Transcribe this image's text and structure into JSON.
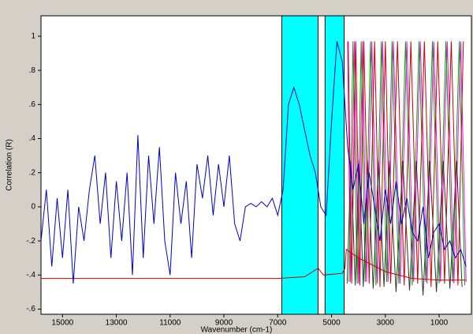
{
  "chart_data": {
    "type": "line",
    "xlabel": "Wavenumber (cm-1)",
    "ylabel": "Correlation (R)",
    "xlim": [
      15800,
      -200
    ],
    "ylim": [
      -0.63,
      1.12
    ],
    "xticks": [
      15000,
      13000,
      11000,
      9000,
      7000,
      5000,
      3000,
      1000
    ],
    "yticks": [
      {
        "value": 1,
        "label": "1"
      },
      {
        "value": 0.8,
        "label": ".8"
      },
      {
        "value": 0.6,
        "label": ".6"
      },
      {
        "value": 0.4,
        "label": ".4"
      },
      {
        "value": 0.2,
        "label": ".2"
      },
      {
        "value": 0,
        "label": "0"
      },
      {
        "value": -0.2,
        "label": "-.2"
      },
      {
        "value": -0.4,
        "label": "-.4"
      },
      {
        "value": -0.6,
        "label": "-.6"
      }
    ],
    "grid": false,
    "highlight_regions": [
      [
        6850,
        5500
      ],
      [
        5240,
        4530
      ]
    ],
    "highlight_color": "#00ffff",
    "series": [
      {
        "color": "#ff00ff",
        "x": [
          4400,
          4300,
          4150,
          4000,
          3850,
          3700,
          3500,
          3300,
          3100,
          2900,
          2700,
          2450,
          2200,
          1950,
          1700,
          1450,
          1200,
          950,
          700,
          450,
          200,
          0
        ],
        "values": [
          0.97,
          -0.44,
          0.97,
          -0.45,
          0.97,
          -0.44,
          0.97,
          -0.45,
          0.97,
          -0.44,
          0.97,
          -0.45,
          0.97,
          -0.44,
          0.97,
          -0.45,
          0.97,
          -0.44,
          0.97,
          -0.45,
          0.97,
          -0.44
        ]
      },
      {
        "color": "#00aa00",
        "x": [
          4350,
          4200,
          4050,
          3900,
          3750,
          3550,
          3350,
          3150,
          2950,
          2750,
          2500,
          2250,
          2000,
          1750,
          1500,
          1250,
          1000,
          750,
          500,
          250,
          50
        ],
        "values": [
          -0.44,
          0.97,
          -0.45,
          0.97,
          -0.44,
          0.97,
          -0.46,
          0.97,
          -0.44,
          0.97,
          -0.45,
          0.97,
          -0.46,
          0.97,
          -0.44,
          0.97,
          -0.45,
          0.97,
          -0.44,
          0.97,
          -0.46
        ]
      },
      {
        "color": "#cc0000",
        "x": [
          4380,
          4250,
          4100,
          3950,
          3800,
          3600,
          3400,
          3200,
          3000,
          2800,
          2550,
          2300,
          2050,
          1800,
          1550,
          1300,
          1050,
          800,
          550,
          300,
          100
        ],
        "values": [
          0.97,
          -0.45,
          0.97,
          -0.46,
          0.97,
          -0.45,
          0.97,
          -0.47,
          0.97,
          -0.45,
          0.97,
          -0.46,
          0.97,
          -0.45,
          0.97,
          -0.47,
          0.97,
          -0.45,
          0.97,
          -0.46,
          0.97
        ]
      },
      {
        "color": "#333333",
        "x": [
          4420,
          4280,
          4120,
          3980,
          3820,
          3650,
          3450,
          3250,
          3050,
          2850,
          2600,
          2350,
          2100,
          1850,
          1600,
          1350,
          1100,
          850,
          600,
          350,
          150
        ],
        "values": [
          -0.45,
          0.27,
          -0.46,
          0.27,
          -0.47,
          0.27,
          -0.48,
          0.27,
          -0.47,
          0.27,
          -0.5,
          0.27,
          -0.49,
          0.27,
          -0.52,
          0.27,
          -0.5,
          0.27,
          -0.48,
          0.27,
          -0.47
        ]
      },
      {
        "color": "#cc0000",
        "x": [
          15800,
          7000,
          6000,
          5700,
          5500,
          5300,
          4600,
          4500,
          4450,
          4000,
          3000,
          2000,
          1000,
          0
        ],
        "values": [
          -0.42,
          -0.42,
          -0.41,
          -0.38,
          -0.36,
          -0.4,
          -0.39,
          -0.36,
          -0.25,
          -0.3,
          -0.38,
          -0.42,
          -0.43,
          -0.43
        ]
      },
      {
        "color": "#0000cc",
        "x": [
          15800,
          15600,
          15400,
          15200,
          15000,
          14800,
          14600,
          14400,
          14200,
          14000,
          13800,
          13600,
          13400,
          13200,
          13000,
          12800,
          12600,
          12400,
          12200,
          12000,
          11800,
          11600,
          11400,
          11200,
          11000,
          10800,
          10600,
          10400,
          10200,
          10000,
          9800,
          9600,
          9400,
          9200,
          9000,
          8800,
          8600,
          8400,
          8200,
          8000,
          7800,
          7600,
          7400,
          7200,
          7000,
          6800,
          6600,
          6400,
          6200,
          6000,
          5800,
          5600,
          5400,
          5200,
          5000,
          4800,
          4600,
          4400,
          4200,
          4000,
          3800,
          3600,
          3400,
          3200,
          3000,
          2800,
          2600,
          2400,
          2200,
          2000,
          1800,
          1600,
          1400,
          1200,
          1000,
          800,
          600,
          400,
          200,
          0
        ],
        "values": [
          -0.2,
          0.1,
          -0.35,
          0.05,
          -0.3,
          0.1,
          -0.45,
          0.0,
          -0.2,
          0.1,
          0.3,
          -0.1,
          0.2,
          -0.3,
          0.15,
          -0.2,
          0.2,
          -0.4,
          0.42,
          -0.3,
          0.3,
          -0.1,
          0.35,
          -0.2,
          -0.4,
          0.2,
          -0.1,
          0.15,
          -0.3,
          0.25,
          0.05,
          0.3,
          -0.05,
          0.25,
          0.0,
          0.3,
          -0.1,
          -0.2,
          0.0,
          0.02,
          0.0,
          0.03,
          0.0,
          0.05,
          -0.05,
          0.1,
          0.6,
          0.7,
          0.6,
          0.45,
          0.3,
          0.2,
          0.0,
          -0.05,
          0.5,
          0.97,
          0.85,
          0.35,
          0.1,
          0.25,
          -0.1,
          0.2,
          0.0,
          -0.2,
          0.1,
          -0.1,
          0.15,
          -0.1,
          0.05,
          -0.15,
          -0.2,
          0.0,
          -0.3,
          -0.15,
          -0.1,
          -0.25,
          -0.2,
          -0.3,
          -0.25,
          -0.35
        ]
      }
    ]
  }
}
